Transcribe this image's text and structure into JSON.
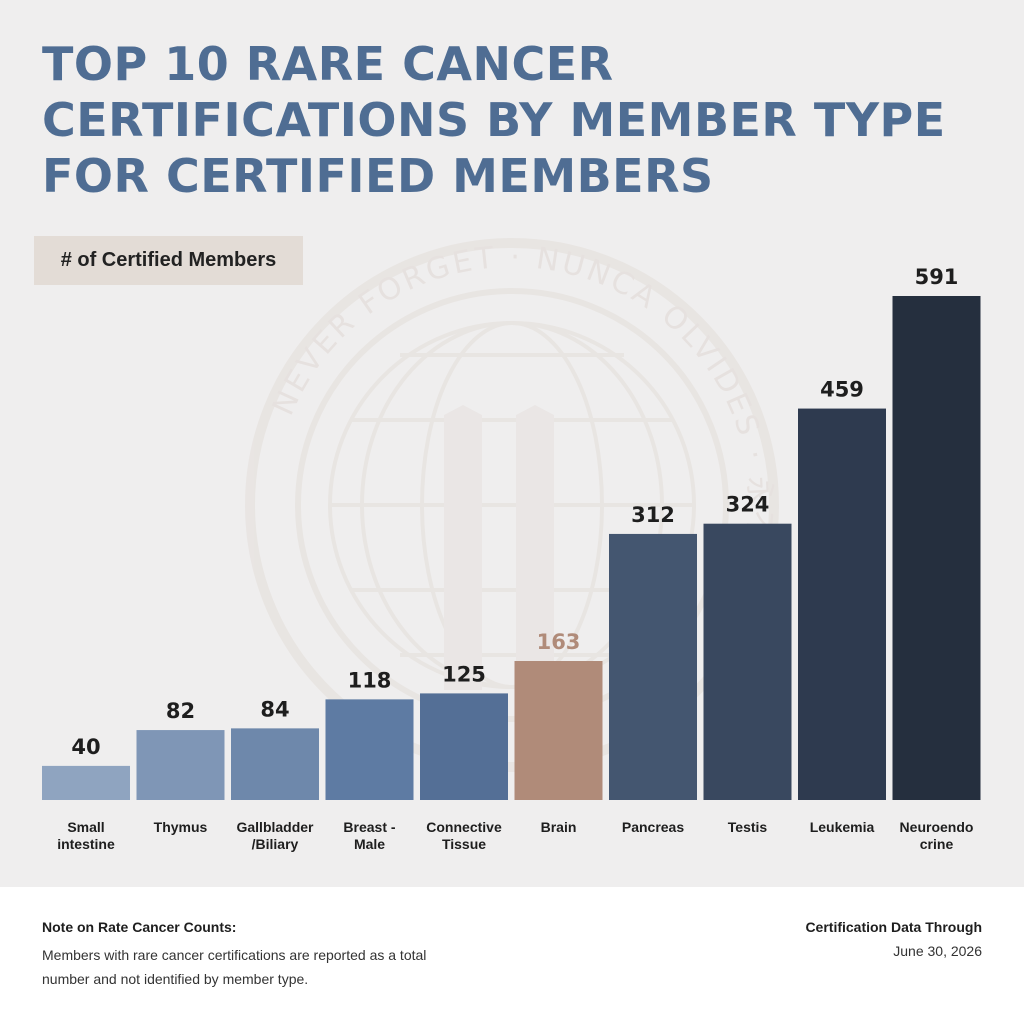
{
  "title": "TOP 10 RARE CANCER\nCERTIFICATIONS BY MEMBER TYPE\nFOR CERTIFIED MEMBERS",
  "unit_label": "# of Certified Members",
  "watermark_text": "NEVER FORGET · NUNCA OLVIDES · 永不忘记 ·",
  "colors": {
    "title": "#4f6d93",
    "highlight": "#b08b79",
    "value_label": "#1e1e1e"
  },
  "chart_data": {
    "type": "bar",
    "categories": [
      "Small\nintestine",
      "Thymus",
      "Gallbladder\n/Biliary",
      "Breast -\nMale",
      "Connective\nTissue",
      "Brain",
      "Pancreas",
      "Testis",
      "Leukemia",
      "Neuroendo\ncrine"
    ],
    "values": [
      40,
      82,
      84,
      118,
      125,
      163,
      312,
      324,
      459,
      591
    ],
    "bar_colors": [
      "#8fa4c0",
      "#7f96b6",
      "#6e88ab",
      "#5e7ba3",
      "#546f96",
      "#b08b79",
      "#445670",
      "#39485f",
      "#2e3a4f",
      "#252f3e"
    ],
    "highlight_index": 5,
    "ylim": [
      0,
      591
    ],
    "title": "TOP 10 RARE CANCER CERTIFICATIONS BY MEMBER TYPE FOR CERTIFIED MEMBERS",
    "xlabel": "",
    "ylabel": "# of Certified Members",
    "grid": false,
    "legend": "none"
  },
  "footer": {
    "note_title": "Note on Rate Cancer Counts:",
    "note_body": "Members with rare cancer certifications are reported as a total number and not identified by member type.",
    "data_through_title": "Certification Data Through",
    "data_through_date": "June 30, 2026"
  }
}
